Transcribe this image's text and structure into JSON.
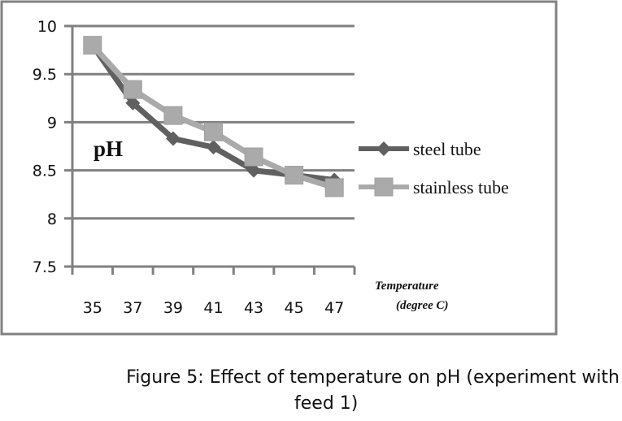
{
  "chart_data": {
    "type": "line",
    "title": "",
    "ylabel": "pH",
    "xlabel": "Temperature (degree C)",
    "xlabel_lines": [
      "Temperature",
      "(degree C)"
    ],
    "categories": [
      "35",
      "37",
      "39",
      "41",
      "43",
      "45",
      "47"
    ],
    "ylim": [
      7.5,
      10
    ],
    "yticks": [
      7.5,
      8,
      8.5,
      9,
      9.5,
      10
    ],
    "ytick_labels": [
      "7.5",
      "8",
      "8.5",
      "9",
      "9.5",
      "10"
    ],
    "grid": true,
    "legend_position": "right",
    "series": [
      {
        "name": "steel tube",
        "marker": "diamond",
        "color": "#606060",
        "values": [
          9.8,
          9.2,
          8.83,
          8.74,
          8.5,
          8.45,
          8.4
        ]
      },
      {
        "name": "stainless tube",
        "marker": "square",
        "color": "#aaaaaa",
        "values": [
          9.8,
          9.34,
          9.07,
          8.9,
          8.64,
          8.45,
          8.32
        ]
      }
    ]
  },
  "caption": {
    "line1": "Figure 5: Effect of temperature on  pH (experiment with",
    "line2": "feed 1)"
  }
}
